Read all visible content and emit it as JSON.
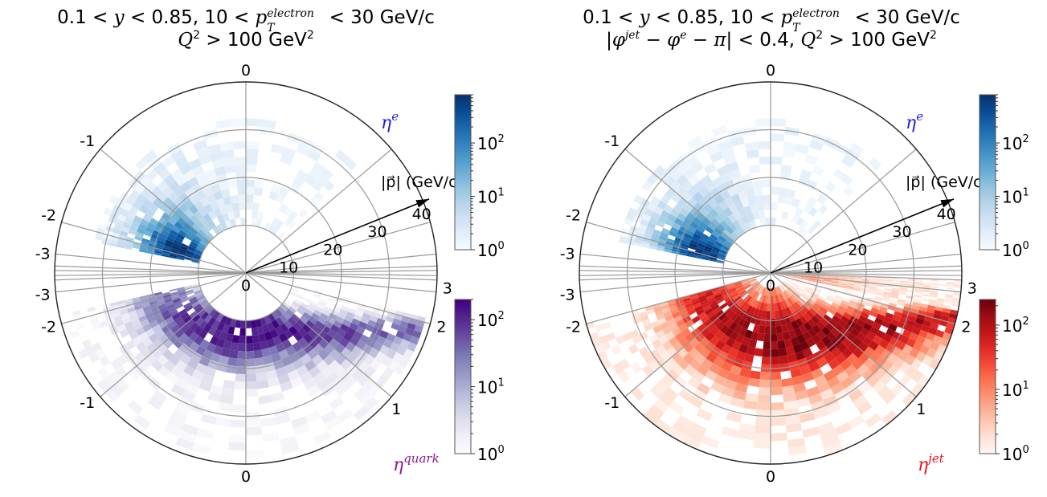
{
  "chart_data": [
    {
      "type": "heatmap",
      "subtype": "polar-2d-histogram",
      "title_line1": "0.1 < y < 0.85, 10 < p_T^electron < 30 GeV/c",
      "title_line2": "Q^2 > 100 GeV^2",
      "radial_axis": {
        "label": "|p| (GeV/c)",
        "ticks": [
          10,
          20,
          30,
          40
        ],
        "range": [
          0,
          40
        ]
      },
      "angular_axis": {
        "quantity": "pseudorapidity",
        "tick_labels_top": [
          "-3",
          "-2",
          "-1",
          "0"
        ],
        "tick_labels_bottom": [
          "-3",
          "-2",
          "-1",
          "0"
        ],
        "tick_labels_right": [
          "3",
          "2",
          "1"
        ],
        "fan_lines_eta": [
          -5,
          -4,
          -3,
          -2,
          -1,
          0,
          1,
          2,
          3,
          4,
          5
        ]
      },
      "series": [
        {
          "name": "η^e",
          "region": "top",
          "label_color": "#1f1fdd",
          "colormap": "Blues",
          "colorbar": {
            "scale": "log",
            "ticks": [
              "10^0",
              "10^1",
              "10^2"
            ],
            "range": [
              1,
              800
            ]
          },
          "peak_count": 800,
          "peak_eta": -1.9,
          "peak_p": 14,
          "eta_range": [
            -2.3,
            0.9
          ],
          "p_range": [
            10,
            32
          ]
        },
        {
          "name": "η^quark",
          "region": "bottom",
          "label_color": "#8b1a8b",
          "colormap": "Purples",
          "colorbar": {
            "scale": "log",
            "ticks": [
              "10^0",
              "10^1",
              "10^2"
            ],
            "range": [
              1,
              200
            ]
          },
          "peak_count": 200,
          "peak_eta": 0.0,
          "peak_p": 11,
          "eta_range": [
            -2.2,
            2.1
          ],
          "p_range": [
            10,
            38
          ]
        }
      ]
    },
    {
      "type": "heatmap",
      "subtype": "polar-2d-histogram",
      "title_line1": "0.1 < y < 0.85, 10 < p_T^electron < 30 GeV/c",
      "title_line2": "|φ^jet − φ^e − π| < 0.4, Q^2 > 100 GeV^2",
      "radial_axis": {
        "label": "|p| (GeV/c)",
        "ticks": [
          10,
          20,
          30,
          40
        ],
        "range": [
          0,
          40
        ]
      },
      "angular_axis": {
        "quantity": "pseudorapidity",
        "tick_labels_top": [
          "-3",
          "-2",
          "-1",
          "0"
        ],
        "tick_labels_bottom": [
          "-3",
          "-2",
          "-1",
          "0"
        ],
        "tick_labels_right": [
          "3",
          "2",
          "1"
        ],
        "fan_lines_eta": [
          -5,
          -4,
          -3,
          -2,
          -1,
          0,
          1,
          2,
          3,
          4,
          5
        ]
      },
      "series": [
        {
          "name": "η^e",
          "region": "top",
          "label_color": "#1f1fdd",
          "colormap": "Blues",
          "colorbar": {
            "scale": "log",
            "ticks": [
              "10^0",
              "10^1",
              "10^2"
            ],
            "range": [
              1,
              800
            ]
          },
          "peak_count": 800,
          "peak_eta": -1.9,
          "peak_p": 14,
          "eta_range": [
            -2.3,
            0.9
          ],
          "p_range": [
            10,
            32
          ]
        },
        {
          "name": "η^jet",
          "region": "bottom",
          "label_color": "#e8141c",
          "colormap": "Reds",
          "colorbar": {
            "scale": "log",
            "ticks": [
              "10^0",
              "10^1",
              "10^2"
            ],
            "range": [
              1,
              250
            ]
          },
          "peak_count": 250,
          "peak_eta": 0.6,
          "peak_p": 13,
          "eta_range": [
            -2.0,
            4.0
          ],
          "p_range": [
            0,
            40
          ]
        }
      ]
    }
  ],
  "titles": {
    "left_line1_a": "0.1 < ",
    "left_line1_y": "y",
    "left_line1_b": " < 0.85, 10 < ",
    "left_line1_p": "p",
    "left_line1_sup": "electron",
    "left_line1_sub": "T",
    "left_line1_c": " < 30 GeV/c",
    "left_line2_q": "Q",
    "left_line2_rest": " > 100 GeV",
    "right_line2_a": "|",
    "right_line2_phi": "φ",
    "right_line2_jet": "jet",
    "right_line2_b": " − ",
    "right_line2_phie": "φ",
    "right_line2_e": "e",
    "right_line2_c": " − ",
    "right_line2_pi": "π",
    "right_line2_d": "| < 0.4, ",
    "right_line2_q": "Q",
    "right_line2_rest": " > 100 GeV"
  },
  "labels": {
    "radial_axis": "|p⃗| (GeV/c)",
    "eta_e_base": "η",
    "eta_e_sup": "e",
    "eta_quark_base": "η",
    "eta_quark_sup": "quark",
    "eta_jet_base": "η",
    "eta_jet_sup": "jet"
  }
}
